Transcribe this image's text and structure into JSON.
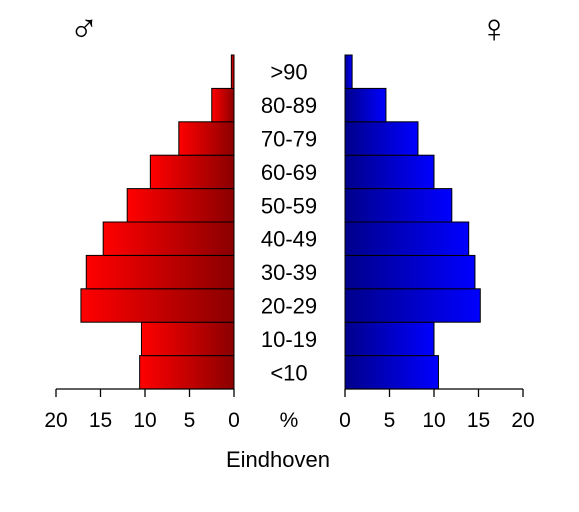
{
  "chart_data": {
    "type": "bar",
    "orientation": "horizontal",
    "layout": "population-pyramid",
    "title": "Eindhoven",
    "center_label": "%",
    "male_symbol": "♂",
    "female_symbol": "♀",
    "categories": [
      "<10",
      "10-19",
      "20-29",
      "30-39",
      "40-49",
      "50-59",
      "60-69",
      "70-79",
      "80-89",
      ">90"
    ],
    "series": [
      {
        "side": "left",
        "values": [
          10.6,
          10.4,
          17.2,
          16.6,
          14.7,
          12.0,
          9.4,
          6.2,
          2.5,
          0.3
        ]
      },
      {
        "side": "right",
        "values": [
          10.5,
          10.0,
          15.2,
          14.6,
          13.9,
          12.0,
          10.0,
          8.2,
          4.6,
          0.8
        ]
      }
    ],
    "xlim": [
      0,
      20
    ],
    "xticks": [
      20,
      15,
      10,
      5,
      0
    ],
    "colors": {
      "male_outer": "#ff0000",
      "male_inner": "#8b0000",
      "female_outer": "#0000ff",
      "female_inner": "#00008b"
    }
  }
}
